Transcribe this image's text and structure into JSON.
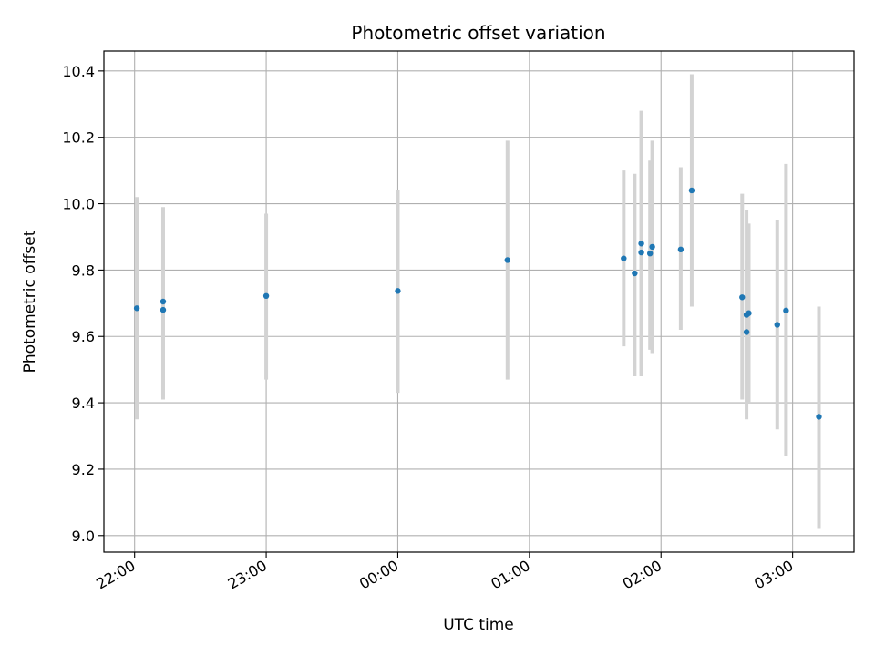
{
  "chart_data": {
    "type": "scatter",
    "title": "Photometric offset variation",
    "xlabel": "UTC time",
    "ylabel": "Photometric offset",
    "x_axis_kind": "time",
    "xlim": [
      "21:46",
      "03:28"
    ],
    "ylim": [
      8.95,
      10.46
    ],
    "x_ticks": [
      "22:00",
      "23:00",
      "00:00",
      "01:00",
      "02:00",
      "03:00"
    ],
    "y_ticks": [
      9.0,
      9.2,
      9.4,
      9.6,
      9.8,
      10.0,
      10.2,
      10.4
    ],
    "grid": true,
    "colors": {
      "point": "#1f77b4",
      "errorbar": "#d3d3d3",
      "grid": "#b0b0b0"
    },
    "points": [
      {
        "t": "22:01",
        "y": 9.685,
        "lo": 9.35,
        "hi": 10.02
      },
      {
        "t": "22:13",
        "y": 9.705,
        "lo": 9.42,
        "hi": 9.99
      },
      {
        "t": "22:13",
        "y": 9.68,
        "lo": 9.41,
        "hi": 9.95
      },
      {
        "t": "23:00",
        "y": 9.722,
        "lo": 9.47,
        "hi": 9.97
      },
      {
        "t": "00:00",
        "y": 9.737,
        "lo": 9.43,
        "hi": 10.04
      },
      {
        "t": "00:50",
        "y": 9.83,
        "lo": 9.47,
        "hi": 10.19
      },
      {
        "t": "01:43",
        "y": 9.835,
        "lo": 9.57,
        "hi": 10.1
      },
      {
        "t": "01:48",
        "y": 9.79,
        "lo": 9.48,
        "hi": 10.09
      },
      {
        "t": "01:51",
        "y": 9.88,
        "lo": 9.48,
        "hi": 10.28
      },
      {
        "t": "01:51",
        "y": 9.853,
        "lo": 9.49,
        "hi": 10.21
      },
      {
        "t": "01:55",
        "y": 9.85,
        "lo": 9.56,
        "hi": 10.13
      },
      {
        "t": "01:56",
        "y": 9.87,
        "lo": 9.55,
        "hi": 10.19
      },
      {
        "t": "02:09",
        "y": 9.862,
        "lo": 9.62,
        "hi": 10.11
      },
      {
        "t": "02:14",
        "y": 10.04,
        "lo": 9.69,
        "hi": 10.39
      },
      {
        "t": "02:37",
        "y": 9.718,
        "lo": 9.41,
        "hi": 10.03
      },
      {
        "t": "02:39",
        "y": 9.665,
        "lo": 9.35,
        "hi": 9.98
      },
      {
        "t": "02:39",
        "y": 9.613,
        "lo": 9.4,
        "hi": 9.83
      },
      {
        "t": "02:40",
        "y": 9.67,
        "lo": 9.4,
        "hi": 9.94
      },
      {
        "t": "02:53",
        "y": 9.635,
        "lo": 9.32,
        "hi": 9.95
      },
      {
        "t": "02:57",
        "y": 9.678,
        "lo": 9.24,
        "hi": 10.12
      },
      {
        "t": "03:12",
        "y": 9.358,
        "lo": 9.02,
        "hi": 9.69
      }
    ]
  }
}
